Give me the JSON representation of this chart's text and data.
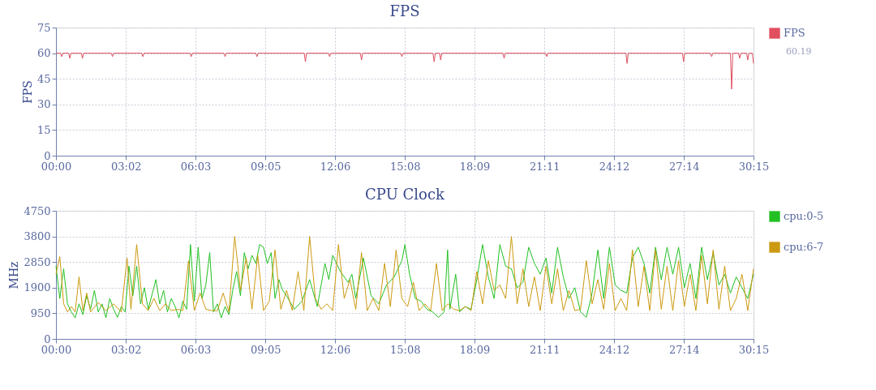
{
  "chart_data": [
    {
      "type": "line",
      "title": "FPS",
      "ylabel": "FPS",
      "xlim": [
        0,
        1815
      ],
      "ylim": [
        0,
        75
      ],
      "yticks": [
        0,
        15,
        30,
        45,
        60,
        75
      ],
      "xticks": [
        {
          "value": 0,
          "label": "00:00"
        },
        {
          "value": 182,
          "label": "03:02"
        },
        {
          "value": 363,
          "label": "06:03"
        },
        {
          "value": 545,
          "label": "09:05"
        },
        {
          "value": 726,
          "label": "12:06"
        },
        {
          "value": 908,
          "label": "15:08"
        },
        {
          "value": 1089,
          "label": "18:09"
        },
        {
          "value": 1271,
          "label": "21:11"
        },
        {
          "value": 1452,
          "label": "24:12"
        },
        {
          "value": 1634,
          "label": "27:14"
        },
        {
          "value": 1815,
          "label": "30:15"
        }
      ],
      "grid": true,
      "legend": "top right",
      "annotations": [
        "60.19"
      ],
      "series": [
        {
          "name": "FPS",
          "color": "#e05060",
          "x": [
            0,
            12,
            15,
            18,
            33,
            36,
            39,
            66,
            69,
            72,
            144,
            147,
            150,
            223,
            226,
            229,
            349,
            352,
            355,
            437,
            440,
            443,
            520,
            523,
            526,
            646,
            649,
            652,
            709,
            712,
            715,
            792,
            795,
            798,
            897,
            900,
            903,
            981,
            984,
            987,
            998,
            1001,
            1004,
            1163,
            1166,
            1169,
            1274,
            1277,
            1280,
            1483,
            1486,
            1489,
            1630,
            1633,
            1636,
            1703,
            1706,
            1709,
            1755,
            1758,
            1761,
            1776,
            1779,
            1782,
            1797,
            1800,
            1803,
            1812,
            1815
          ],
          "values": [
            60,
            60,
            58,
            60,
            60,
            57,
            60,
            60,
            57,
            60,
            60,
            58,
            60,
            60,
            58,
            60,
            60,
            58,
            60,
            60,
            58,
            60,
            60,
            58,
            60,
            60,
            55,
            60,
            60,
            58,
            60,
            60,
            56,
            60,
            60,
            58,
            60,
            60,
            55,
            60,
            60,
            56,
            60,
            60,
            57,
            60,
            60,
            58,
            60,
            60,
            54,
            60,
            60,
            55,
            60,
            60,
            58,
            60,
            60,
            39,
            60,
            60,
            57,
            60,
            60,
            56,
            60,
            60,
            54
          ]
        }
      ]
    },
    {
      "type": "line",
      "title": "CPU Clock",
      "ylabel": "MHz",
      "xlim": [
        0,
        1815
      ],
      "ylim": [
        0,
        4750
      ],
      "yticks": [
        0,
        950,
        1900,
        2850,
        3800,
        4750
      ],
      "xticks": [
        {
          "value": 0,
          "label": "00:00"
        },
        {
          "value": 182,
          "label": "03:02"
        },
        {
          "value": 363,
          "label": "06:03"
        },
        {
          "value": 545,
          "label": "09:05"
        },
        {
          "value": 726,
          "label": "12:06"
        },
        {
          "value": 908,
          "label": "15:08"
        },
        {
          "value": 1089,
          "label": "18:09"
        },
        {
          "value": 1271,
          "label": "21:11"
        },
        {
          "value": 1452,
          "label": "24:12"
        },
        {
          "value": 1634,
          "label": "27:14"
        },
        {
          "value": 1815,
          "label": "30:15"
        }
      ],
      "grid": true,
      "legend": "top right",
      "series": [
        {
          "name": "cpu:0-5",
          "color": "#22c022",
          "x": [
            0,
            10,
            20,
            30,
            40,
            50,
            60,
            70,
            80,
            90,
            100,
            110,
            120,
            130,
            140,
            150,
            160,
            170,
            180,
            190,
            200,
            210,
            220,
            230,
            240,
            260,
            270,
            280,
            290,
            300,
            310,
            320,
            330,
            340,
            350,
            360,
            370,
            380,
            390,
            400,
            410,
            420,
            430,
            440,
            450,
            460,
            470,
            480,
            490,
            500,
            510,
            520,
            530,
            540,
            550,
            560,
            570,
            580,
            590,
            600,
            620,
            640,
            660,
            680,
            700,
            710,
            720,
            740,
            760,
            770,
            780,
            800,
            820,
            840,
            860,
            880,
            900,
            908,
            920,
            935,
            950,
            965,
            980,
            995,
            1010,
            1019,
            1025,
            1040,
            1050,
            1065,
            1080,
            1095,
            1110,
            1125,
            1140,
            1155,
            1170,
            1185,
            1200,
            1215,
            1230,
            1245,
            1260,
            1275,
            1290,
            1305,
            1320,
            1335,
            1350,
            1365,
            1380,
            1395,
            1410,
            1425,
            1440,
            1455,
            1470,
            1485,
            1500,
            1515,
            1530,
            1545,
            1560,
            1575,
            1590,
            1605,
            1620,
            1635,
            1650,
            1665,
            1680,
            1695,
            1710,
            1725,
            1740,
            1755,
            1770,
            1785,
            1800,
            1815
          ],
          "values": [
            2700,
            1500,
            2600,
            1300,
            1000,
            780,
            1300,
            900,
            1600,
            1100,
            1800,
            1000,
            1300,
            780,
            1500,
            1100,
            800,
            1200,
            1000,
            2700,
            1600,
            2700,
            1300,
            1900,
            1100,
            2200,
            1300,
            1800,
            1000,
            1500,
            1200,
            780,
            1400,
            1100,
            3500,
            1400,
            3400,
            1500,
            2000,
            3200,
            1000,
            1300,
            780,
            1200,
            900,
            1800,
            2500,
            1600,
            3200,
            2600,
            3100,
            2800,
            3500,
            3400,
            2800,
            3200,
            1500,
            2200,
            1800,
            1600,
            1100,
            1400,
            2200,
            1200,
            2800,
            2200,
            3100,
            2500,
            2100,
            2400,
            1500,
            3000,
            1600,
            1300,
            2000,
            2300,
            2900,
            3500,
            2400,
            1500,
            1400,
            1100,
            1000,
            800,
            1000,
            3300,
            1100,
            2400,
            1000,
            1200,
            1100,
            2200,
            3500,
            2300,
            1500,
            3500,
            2700,
            2600,
            1900,
            2100,
            3400,
            2800,
            2400,
            3000,
            1700,
            3400,
            2300,
            1500,
            1900,
            1000,
            800,
            1700,
            3300,
            1500,
            3400,
            2000,
            1800,
            1700,
            3000,
            3400,
            2800,
            1700,
            3400,
            2200,
            3400,
            2400,
            3400,
            1900,
            2800,
            1500,
            3400,
            2200,
            3200,
            2000,
            2400,
            1700,
            2300,
            1900,
            1500,
            2400
          ]
        },
        {
          "name": "cpu:6-7",
          "color": "#cc9a10",
          "x": [
            0,
            10,
            20,
            30,
            40,
            50,
            60,
            70,
            80,
            90,
            110,
            130,
            150,
            170,
            185,
            195,
            210,
            225,
            240,
            255,
            270,
            285,
            300,
            315,
            330,
            345,
            360,
            375,
            390,
            405,
            420,
            435,
            450,
            465,
            480,
            495,
            510,
            525,
            540,
            555,
            570,
            585,
            600,
            615,
            630,
            645,
            660,
            675,
            690,
            705,
            720,
            735,
            750,
            765,
            780,
            795,
            810,
            825,
            840,
            855,
            870,
            885,
            900,
            915,
            930,
            945,
            960,
            975,
            990,
            1005,
            1020,
            1035,
            1050,
            1065,
            1080,
            1095,
            1110,
            1125,
            1140,
            1155,
            1170,
            1185,
            1200,
            1215,
            1230,
            1245,
            1260,
            1275,
            1290,
            1305,
            1320,
            1335,
            1350,
            1365,
            1380,
            1395,
            1410,
            1425,
            1440,
            1455,
            1470,
            1485,
            1500,
            1515,
            1530,
            1545,
            1560,
            1575,
            1590,
            1605,
            1620,
            1635,
            1650,
            1665,
            1680,
            1695,
            1710,
            1725,
            1740,
            1755,
            1770,
            1785,
            1800,
            1815
          ],
          "values": [
            2400,
            3050,
            1300,
            1000,
            1200,
            1000,
            2300,
            1050,
            1700,
            1000,
            1350,
            1050,
            1300,
            1000,
            3000,
            1100,
            3500,
            1300,
            1050,
            1500,
            1050,
            1300,
            1050,
            1100,
            1050,
            2900,
            1050,
            1700,
            1100,
            1050,
            1050,
            1700,
            1000,
            3800,
            1800,
            3000,
            1100,
            3100,
            1050,
            1400,
            3300,
            1100,
            1800,
            1050,
            2500,
            1050,
            3800,
            1500,
            1100,
            1300,
            1050,
            3500,
            1500,
            2200,
            1100,
            3200,
            1050,
            1500,
            1050,
            2800,
            1200,
            3300,
            1500,
            1200,
            2100,
            1050,
            1300,
            1050,
            2800,
            1050,
            1300,
            1100,
            1050,
            1200,
            1050,
            2500,
            1300,
            2900,
            1800,
            2000,
            1500,
            3800,
            1300,
            2600,
            1200,
            2300,
            1050,
            2700,
            1300,
            2600,
            1050,
            1800,
            1050,
            1100,
            2900,
            1300,
            2200,
            1100,
            2800,
            1050,
            1500,
            1050,
            3300,
            1200,
            2700,
            1050,
            3300,
            1100,
            2700,
            1050,
            2900,
            1200,
            2400,
            1050,
            3100,
            1300,
            3300,
            1100,
            2700,
            1050,
            1500,
            2400,
            1050,
            2600
          ]
        }
      ]
    }
  ]
}
